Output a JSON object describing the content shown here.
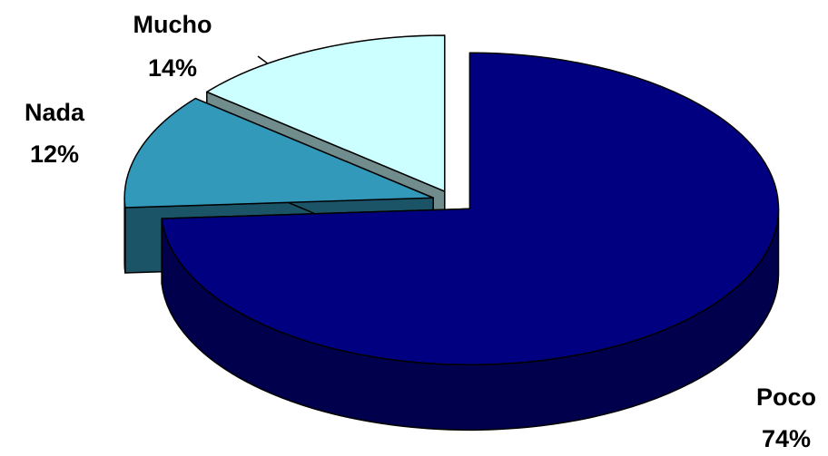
{
  "chart_data": {
    "type": "pie3d",
    "categories": [
      "Poco",
      "Nada",
      "Mucho"
    ],
    "values": [
      74,
      12,
      14
    ],
    "value_labels": [
      "74%",
      "12%",
      "14%"
    ],
    "colors": [
      "#000080",
      "#3399bb",
      "#ccffff"
    ]
  }
}
